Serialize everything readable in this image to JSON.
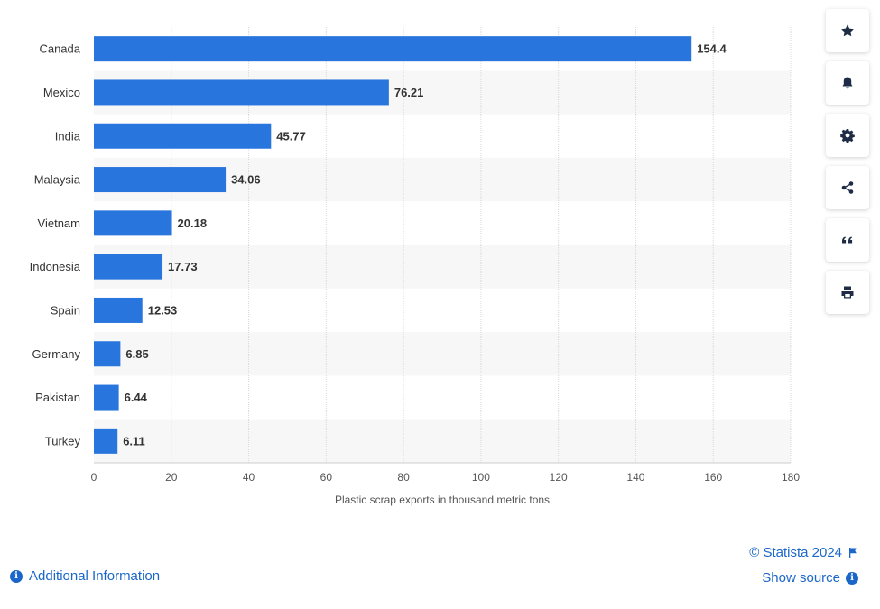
{
  "chart_data": {
    "type": "bar",
    "orientation": "horizontal",
    "categories": [
      "Canada",
      "Mexico",
      "India",
      "Malaysia",
      "Vietnam",
      "Indonesia",
      "Spain",
      "Germany",
      "Pakistan",
      "Turkey"
    ],
    "values": [
      154.4,
      76.21,
      45.77,
      34.06,
      20.18,
      17.73,
      12.53,
      6.85,
      6.44,
      6.11
    ],
    "value_labels": [
      "154.4",
      "76.21",
      "45.77",
      "34.06",
      "20.18",
      "17.73",
      "12.53",
      "6.85",
      "6.44",
      "6.11"
    ],
    "xlabel": "Plastic scrap exports in thousand metric tons",
    "xlim": [
      0,
      180
    ],
    "xticks": [
      0,
      20,
      40,
      60,
      80,
      100,
      120,
      140,
      160,
      180
    ],
    "grid": "vertical",
    "bar_color": "#2876dd"
  },
  "toolbar": {
    "items": [
      {
        "name": "star",
        "label": "Favorite"
      },
      {
        "name": "bell",
        "label": "Notification"
      },
      {
        "name": "gear",
        "label": "Settings"
      },
      {
        "name": "share",
        "label": "Share"
      },
      {
        "name": "quote",
        "label": "Cite"
      },
      {
        "name": "print",
        "label": "Print"
      }
    ]
  },
  "footer": {
    "copyright": "© Statista 2024",
    "show_source": "Show source",
    "additional_info": "Additional Information"
  },
  "colors": {
    "link": "#1a66c9",
    "band": "#f7f7f7",
    "grid": "#d9d9d9"
  }
}
